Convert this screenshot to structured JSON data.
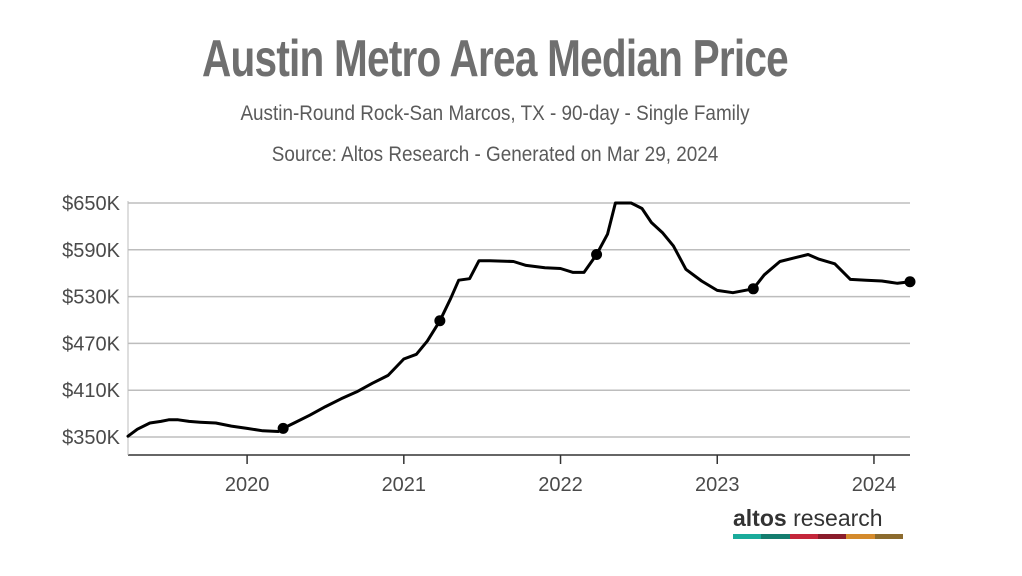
{
  "title": "Austin Metro Area Median Price",
  "subtitle": "Austin-Round Rock-San Marcos, TX - 90-day - Single Family",
  "source": "Source: Altos Research - Generated on Mar 29, 2024",
  "brand": {
    "word1": "altos",
    "word2": "research",
    "colors": [
      "#1aab9b",
      "#147d6f",
      "#c4263b",
      "#8a1c2b",
      "#d48a2c",
      "#8c6b2e"
    ]
  },
  "style": {
    "line_color": "#000000",
    "grid_color": "#bdbdbd",
    "axis_color": "#333333"
  },
  "chart_data": {
    "type": "line",
    "title": "Austin Metro Area Median Price",
    "xlabel": "",
    "ylabel": "",
    "grid": true,
    "legend": "none",
    "xlim": [
      2019.24,
      2024.23
    ],
    "ylim": [
      340,
      650
    ],
    "yticks": [
      350,
      410,
      470,
      530,
      590,
      650
    ],
    "ytick_labels": [
      "$350K",
      "$410K",
      "$470K",
      "$530K",
      "$590K",
      "$650K"
    ],
    "xticks": [
      2020,
      2021,
      2022,
      2023,
      2024
    ],
    "xtick_labels": [
      "2020",
      "2021",
      "2022",
      "2023",
      "2024"
    ],
    "series": [
      {
        "name": "Median Price",
        "points": [
          [
            2019.24,
            351
          ],
          [
            2019.3,
            360
          ],
          [
            2019.38,
            368
          ],
          [
            2019.45,
            370
          ],
          [
            2019.5,
            372
          ],
          [
            2019.56,
            372
          ],
          [
            2019.63,
            370
          ],
          [
            2019.7,
            369
          ],
          [
            2019.8,
            368
          ],
          [
            2019.9,
            364
          ],
          [
            2020.0,
            361
          ],
          [
            2020.1,
            358
          ],
          [
            2020.2,
            357
          ],
          [
            2020.23,
            361
          ],
          [
            2020.3,
            368
          ],
          [
            2020.4,
            378
          ],
          [
            2020.5,
            389
          ],
          [
            2020.6,
            399
          ],
          [
            2020.7,
            408
          ],
          [
            2020.8,
            419
          ],
          [
            2020.9,
            429
          ],
          [
            2021.0,
            450
          ],
          [
            2021.08,
            456
          ],
          [
            2021.15,
            473
          ],
          [
            2021.23,
            499
          ],
          [
            2021.3,
            528
          ],
          [
            2021.35,
            551
          ],
          [
            2021.42,
            553
          ],
          [
            2021.48,
            576
          ],
          [
            2021.55,
            576
          ],
          [
            2021.7,
            575
          ],
          [
            2021.78,
            570
          ],
          [
            2021.9,
            567
          ],
          [
            2022.0,
            566
          ],
          [
            2022.08,
            561
          ],
          [
            2022.15,
            561
          ],
          [
            2022.23,
            584
          ],
          [
            2022.3,
            610
          ],
          [
            2022.35,
            650
          ],
          [
            2022.45,
            650
          ],
          [
            2022.52,
            643
          ],
          [
            2022.58,
            625
          ],
          [
            2022.65,
            612
          ],
          [
            2022.72,
            595
          ],
          [
            2022.8,
            565
          ],
          [
            2022.9,
            550
          ],
          [
            2023.0,
            538
          ],
          [
            2023.1,
            535
          ],
          [
            2023.23,
            540
          ],
          [
            2023.3,
            558
          ],
          [
            2023.4,
            575
          ],
          [
            2023.5,
            580
          ],
          [
            2023.58,
            584
          ],
          [
            2023.65,
            578
          ],
          [
            2023.75,
            572
          ],
          [
            2023.85,
            552
          ],
          [
            2023.95,
            551
          ],
          [
            2024.05,
            550
          ],
          [
            2024.15,
            547
          ],
          [
            2024.23,
            549
          ]
        ],
        "markers": [
          [
            2020.23,
            361
          ],
          [
            2021.23,
            499
          ],
          [
            2022.23,
            584
          ],
          [
            2023.23,
            540
          ],
          [
            2024.23,
            549
          ]
        ]
      }
    ]
  }
}
